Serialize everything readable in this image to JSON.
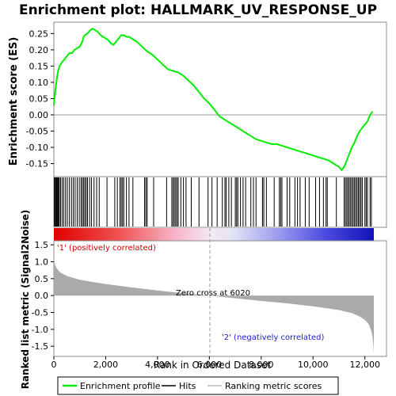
{
  "chart_data": {
    "type": "line",
    "title": "Enrichment plot: HALLMARK_UV_RESPONSE_UP",
    "xlabel": "Rank in Ordered Dataset",
    "colors": {
      "enrichment": "#00ee00",
      "hits": "#000000",
      "metric_fill": "#aaaaaa",
      "positive_label": "#cc0000",
      "negative_label": "#2222cc"
    },
    "es_panel": {
      "ylabel": "Enrichment score (ES)",
      "ylim": [
        -0.19,
        0.285
      ],
      "yticks": [
        -0.15,
        -0.1,
        -0.05,
        0.0,
        0.05,
        0.1,
        0.15,
        0.2,
        0.25
      ],
      "ytick_labels": [
        "-0.15",
        "-0.10",
        "-0.05",
        "0.00",
        "0.05",
        "0.10",
        "0.15",
        "0.20",
        "0.25"
      ],
      "series_name": "Enrichment profile",
      "x": [
        0,
        40,
        80,
        150,
        220,
        300,
        400,
        500,
        600,
        700,
        800,
        900,
        1000,
        1100,
        1150,
        1200,
        1300,
        1400,
        1500,
        1600,
        1700,
        1800,
        1900,
        2000,
        2100,
        2200,
        2300,
        2400,
        2500,
        2600,
        2700,
        2800,
        2900,
        3000,
        3200,
        3400,
        3600,
        3800,
        4000,
        4200,
        4400,
        4600,
        4800,
        5000,
        5200,
        5400,
        5600,
        5800,
        6000,
        6200,
        6400,
        6600,
        6800,
        7000,
        7200,
        7400,
        7600,
        7800,
        8000,
        8200,
        8400,
        8600,
        8800,
        9000,
        9200,
        9400,
        9600,
        9800,
        10000,
        10200,
        10400,
        10600,
        10800,
        11000,
        11100,
        11200,
        11300,
        11400,
        11500,
        11600,
        11700,
        11800,
        11900,
        12000,
        12100,
        12200,
        12300
      ],
      "y": [
        0.03,
        0.06,
        0.09,
        0.13,
        0.15,
        0.16,
        0.17,
        0.18,
        0.19,
        0.19,
        0.2,
        0.205,
        0.21,
        0.225,
        0.24,
        0.245,
        0.25,
        0.26,
        0.265,
        0.26,
        0.255,
        0.245,
        0.24,
        0.235,
        0.23,
        0.22,
        0.215,
        0.225,
        0.235,
        0.245,
        0.245,
        0.24,
        0.24,
        0.235,
        0.225,
        0.21,
        0.195,
        0.185,
        0.17,
        0.155,
        0.14,
        0.135,
        0.13,
        0.12,
        0.105,
        0.09,
        0.07,
        0.05,
        0.035,
        0.015,
        -0.005,
        -0.015,
        -0.025,
        -0.035,
        -0.045,
        -0.055,
        -0.065,
        -0.075,
        -0.08,
        -0.085,
        -0.09,
        -0.09,
        -0.095,
        -0.1,
        -0.105,
        -0.11,
        -0.115,
        -0.12,
        -0.125,
        -0.13,
        -0.135,
        -0.14,
        -0.15,
        -0.16,
        -0.17,
        -0.16,
        -0.14,
        -0.12,
        -0.1,
        -0.085,
        -0.065,
        -0.05,
        -0.04,
        -0.03,
        -0.02,
        0.0,
        0.01
      ]
    },
    "hits": {
      "x": [
        20,
        50,
        80,
        100,
        120,
        150,
        180,
        210,
        260,
        320,
        380,
        450,
        520,
        600,
        680,
        750,
        820,
        900,
        980,
        1050,
        1100,
        1150,
        1200,
        1250,
        1300,
        1380,
        1450,
        1550,
        1650,
        1750,
        2050,
        2350,
        2450,
        2550,
        2600,
        2650,
        2700,
        2800,
        2900,
        3050,
        3500,
        3550,
        3600,
        3850,
        4350,
        4550,
        4600,
        4650,
        4700,
        4750,
        4800,
        4900,
        5000,
        5100,
        5300,
        5600,
        5950,
        6100,
        6300,
        6500,
        6600,
        6650,
        6750,
        6850,
        7000,
        7050,
        7100,
        7200,
        7300,
        7400,
        7600,
        7700,
        7800,
        8050,
        8100,
        8200,
        8500,
        8700,
        8750,
        8800,
        9000,
        9100,
        9300,
        9400,
        9500,
        9700,
        9850,
        10100,
        10250,
        10400,
        10500,
        10550,
        10900,
        11200,
        11250,
        11300,
        11350,
        11400,
        11450,
        11500,
        11550,
        11600,
        11650,
        11700,
        11750,
        11800,
        11850,
        11900,
        12000,
        12050,
        12100,
        12200,
        12250
      ]
    },
    "metric_panel": {
      "ylabel": "Ranked list metric (Signal2Noise)",
      "ylim": [
        -1.8,
        1.62
      ],
      "yticks": [
        -1.5,
        -1.0,
        -0.5,
        0.0,
        0.5,
        1.0,
        1.5
      ],
      "ytick_labels": [
        "-1.5",
        "-1.0",
        "-0.5",
        "0.0",
        "0.5",
        "1.0",
        "1.5"
      ],
      "x": [
        0,
        10,
        30,
        60,
        100,
        150,
        200,
        300,
        400,
        500,
        700,
        1000,
        1500,
        2000,
        3000,
        4000,
        5000,
        6020,
        7000,
        8000,
        9000,
        10000,
        10500,
        11000,
        11500,
        11800,
        12000,
        12150,
        12250,
        12300,
        12330,
        12345
      ],
      "y": [
        1.55,
        1.05,
        0.95,
        0.88,
        0.82,
        0.77,
        0.72,
        0.66,
        0.62,
        0.58,
        0.53,
        0.47,
        0.4,
        0.34,
        0.24,
        0.15,
        0.07,
        0.0,
        -0.08,
        -0.16,
        -0.23,
        -0.32,
        -0.37,
        -0.43,
        -0.52,
        -0.62,
        -0.72,
        -0.85,
        -1.05,
        -1.25,
        -1.5,
        -1.75
      ],
      "positive_label": "'1' (positively correlated)",
      "negative_label": "'2' (negatively correlated)",
      "zero_cross_label": "Zero cross at 6020",
      "zero_cross": 6020
    },
    "xlim": [
      0,
      12345
    ],
    "xticks": [
      0,
      2000,
      4000,
      6000,
      8000,
      10000,
      12000
    ],
    "xtick_labels": [
      "0",
      "2,000",
      "4,000",
      "6,000",
      "8,000",
      "10,000",
      "12,000"
    ],
    "legend": {
      "placement": "bottom",
      "entries": [
        "Enrichment profile",
        "Hits",
        "Ranking metric scores"
      ]
    }
  }
}
